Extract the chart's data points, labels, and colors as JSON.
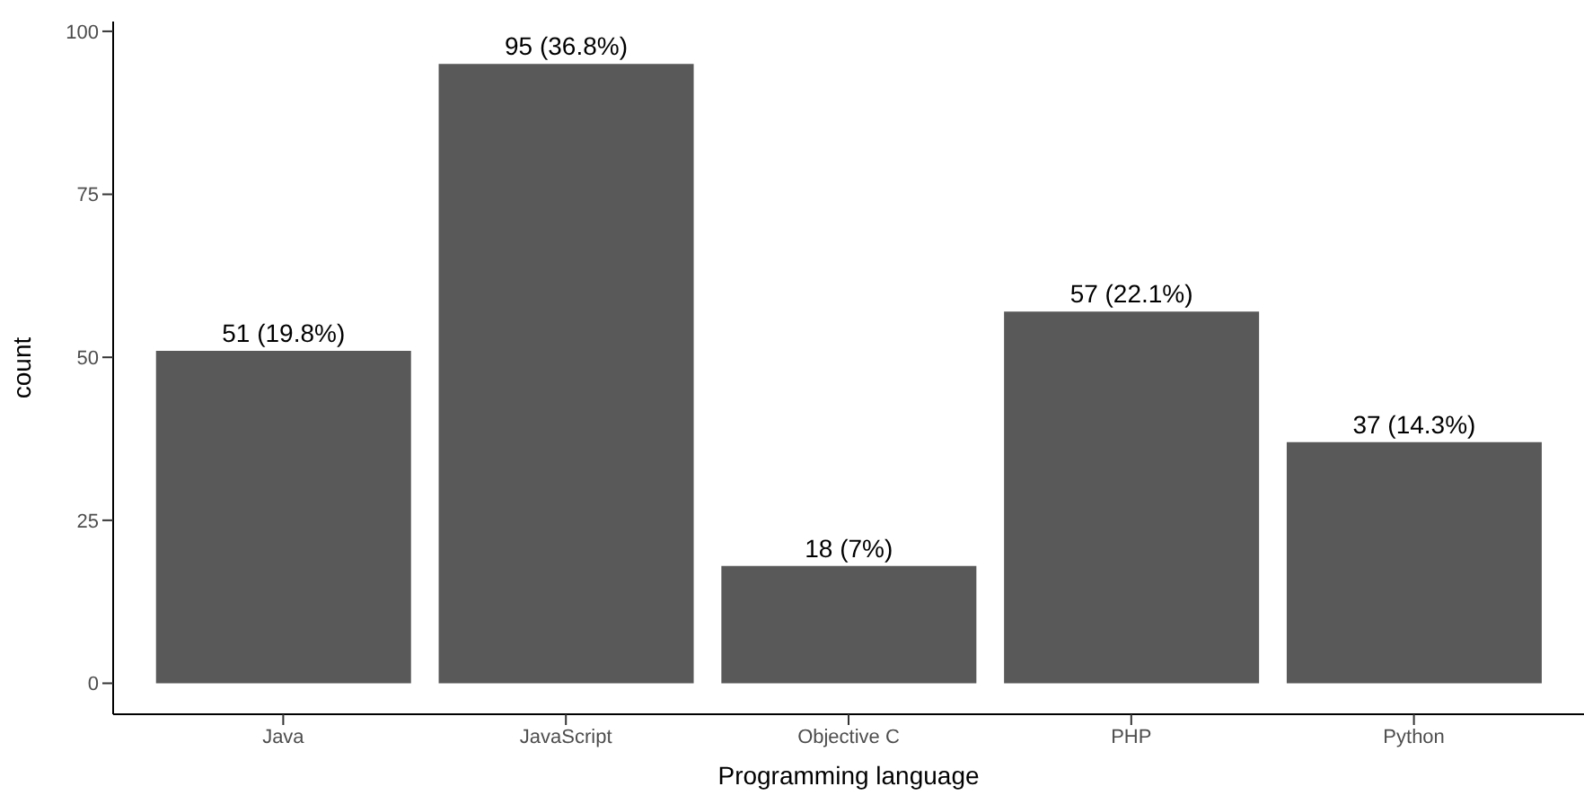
{
  "chart_data": {
    "type": "bar",
    "xlabel": "Programming language",
    "ylabel": "count",
    "categories": [
      "Java",
      "JavaScript",
      "Objective C",
      "PHP",
      "Python"
    ],
    "values": [
      51,
      95,
      18,
      57,
      37
    ],
    "value_labels": [
      "51 (19.8%)",
      "95 (36.8%)",
      "18 (7%)",
      "57 (22.1%)",
      "37 (14.3%)"
    ],
    "color": "#595959",
    "ylim": [
      -4.75,
      101.5
    ],
    "yticks": [
      0,
      25,
      50,
      75,
      100
    ]
  }
}
